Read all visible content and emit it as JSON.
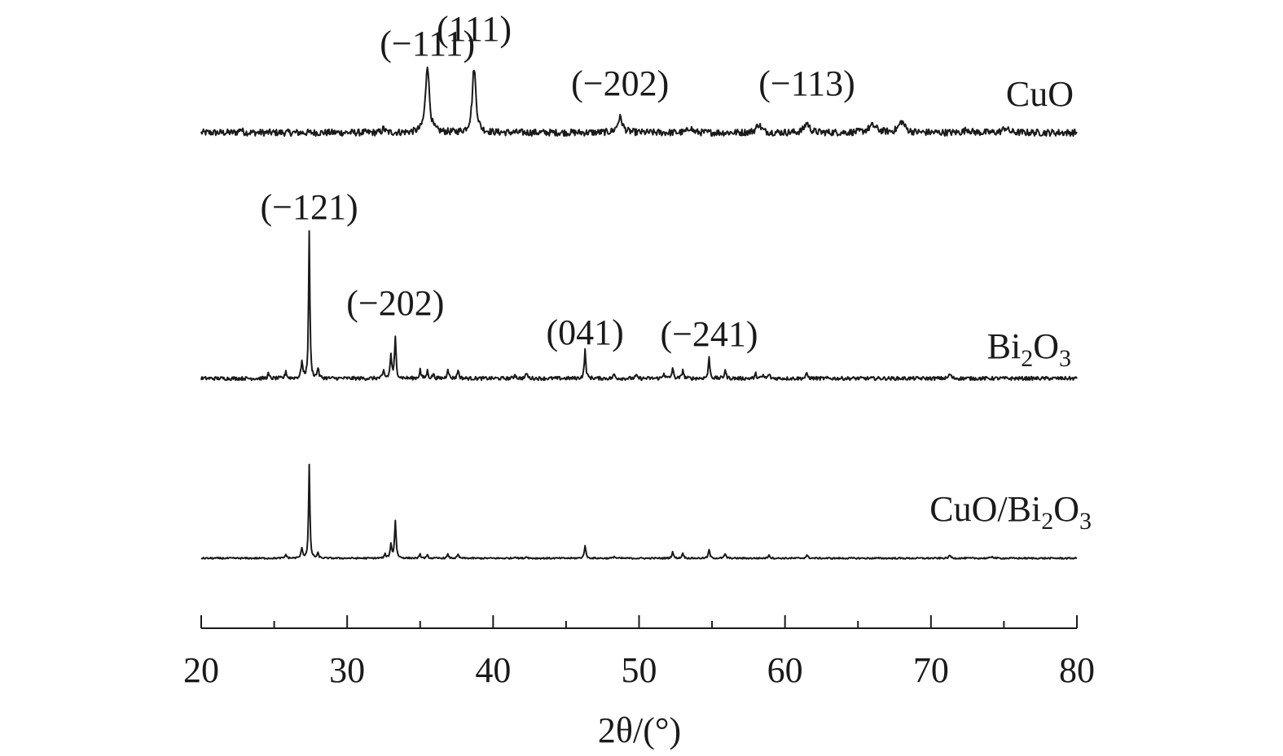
{
  "chart_data": {
    "type": "line",
    "title": "",
    "xlabel": "2θ/(°)",
    "ylabel": "",
    "xlim": [
      20,
      80
    ],
    "x_ticks": [
      20,
      30,
      40,
      50,
      60,
      70,
      80
    ],
    "x_tick_labels": [
      "20",
      "30",
      "40",
      "50",
      "60",
      "70",
      "80"
    ],
    "x_minor_step": 5,
    "y_axis_shown": false,
    "grid": false,
    "legend": "none",
    "line_color": "#1a1a1a",
    "series": [
      {
        "name": "CuO",
        "label_parts": [
          {
            "t": "CuO",
            "sub": false
          }
        ],
        "peaks": [
          {
            "x": 22.7,
            "h": 0.06,
            "w": 0.1
          },
          {
            "x": 32.5,
            "h": 0.06,
            "w": 0.1
          },
          {
            "x": 35.5,
            "h": 1.0,
            "w": 0.15
          },
          {
            "x": 38.7,
            "h": 0.95,
            "w": 0.15
          },
          {
            "x": 48.7,
            "h": 0.22,
            "w": 0.2
          },
          {
            "x": 53.5,
            "h": 0.08,
            "w": 0.15
          },
          {
            "x": 58.2,
            "h": 0.12,
            "w": 0.2
          },
          {
            "x": 61.5,
            "h": 0.14,
            "w": 0.2
          },
          {
            "x": 66.0,
            "h": 0.1,
            "w": 0.35
          },
          {
            "x": 68.0,
            "h": 0.16,
            "w": 0.25
          },
          {
            "x": 72.5,
            "h": 0.05,
            "w": 0.2
          },
          {
            "x": 75.1,
            "h": 0.07,
            "w": 0.2
          }
        ],
        "noise": 0.05,
        "annotations": [
          {
            "text": "(−111)",
            "x": 35.5
          },
          {
            "text": "(111)",
            "x": 38.7
          },
          {
            "text": "(−202)",
            "x": 48.7
          },
          {
            "text": "(−113)",
            "x": 61.5
          }
        ]
      },
      {
        "name": "Bi2O3",
        "label_parts": [
          {
            "t": "Bi",
            "sub": false
          },
          {
            "t": "2",
            "sub": true
          },
          {
            "t": "O",
            "sub": false
          },
          {
            "t": "3",
            "sub": true
          }
        ],
        "peaks": [
          {
            "x": 24.6,
            "h": 0.03,
            "w": 0.06
          },
          {
            "x": 25.8,
            "h": 0.05,
            "w": 0.06
          },
          {
            "x": 26.9,
            "h": 0.12,
            "w": 0.06
          },
          {
            "x": 27.4,
            "h": 1.0,
            "w": 0.05
          },
          {
            "x": 28.0,
            "h": 0.07,
            "w": 0.06
          },
          {
            "x": 32.5,
            "h": 0.05,
            "w": 0.06
          },
          {
            "x": 33.0,
            "h": 0.16,
            "w": 0.06
          },
          {
            "x": 33.3,
            "h": 0.27,
            "w": 0.06
          },
          {
            "x": 35.0,
            "h": 0.06,
            "w": 0.06
          },
          {
            "x": 35.5,
            "h": 0.05,
            "w": 0.06
          },
          {
            "x": 35.9,
            "h": 0.03,
            "w": 0.06
          },
          {
            "x": 36.9,
            "h": 0.07,
            "w": 0.06
          },
          {
            "x": 37.6,
            "h": 0.06,
            "w": 0.06
          },
          {
            "x": 41.5,
            "h": 0.03,
            "w": 0.06
          },
          {
            "x": 42.3,
            "h": 0.04,
            "w": 0.06
          },
          {
            "x": 46.3,
            "h": 0.19,
            "w": 0.06
          },
          {
            "x": 48.3,
            "h": 0.03,
            "w": 0.06
          },
          {
            "x": 49.8,
            "h": 0.02,
            "w": 0.06
          },
          {
            "x": 51.7,
            "h": 0.04,
            "w": 0.06
          },
          {
            "x": 52.3,
            "h": 0.07,
            "w": 0.06
          },
          {
            "x": 53.0,
            "h": 0.06,
            "w": 0.06
          },
          {
            "x": 54.8,
            "h": 0.14,
            "w": 0.06
          },
          {
            "x": 55.9,
            "h": 0.06,
            "w": 0.06
          },
          {
            "x": 58.0,
            "h": 0.03,
            "w": 0.06
          },
          {
            "x": 58.5,
            "h": 0.02,
            "w": 0.06
          },
          {
            "x": 58.9,
            "h": 0.03,
            "w": 0.06
          },
          {
            "x": 61.5,
            "h": 0.03,
            "w": 0.08
          },
          {
            "x": 71.3,
            "h": 0.03,
            "w": 0.08
          }
        ],
        "noise": 0.012,
        "annotations": [
          {
            "text": "(−121)",
            "x": 27.4
          },
          {
            "text": "(−202)",
            "x": 33.3
          },
          {
            "text": "(041)",
            "x": 46.3
          },
          {
            "text": "(−241)",
            "x": 54.8
          }
        ]
      },
      {
        "name": "CuO/Bi2O3",
        "label_parts": [
          {
            "t": "CuO/Bi",
            "sub": false
          },
          {
            "t": "2",
            "sub": true
          },
          {
            "t": "O",
            "sub": false
          },
          {
            "t": "3",
            "sub": true
          }
        ],
        "peaks": [
          {
            "x": 25.8,
            "h": 0.04,
            "w": 0.06
          },
          {
            "x": 26.9,
            "h": 0.11,
            "w": 0.06
          },
          {
            "x": 27.4,
            "h": 1.0,
            "w": 0.05
          },
          {
            "x": 28.0,
            "h": 0.05,
            "w": 0.06
          },
          {
            "x": 32.6,
            "h": 0.04,
            "w": 0.06
          },
          {
            "x": 33.0,
            "h": 0.15,
            "w": 0.06
          },
          {
            "x": 33.3,
            "h": 0.4,
            "w": 0.06
          },
          {
            "x": 35.0,
            "h": 0.04,
            "w": 0.06
          },
          {
            "x": 35.5,
            "h": 0.03,
            "w": 0.06
          },
          {
            "x": 36.9,
            "h": 0.04,
            "w": 0.06
          },
          {
            "x": 37.6,
            "h": 0.04,
            "w": 0.06
          },
          {
            "x": 41.5,
            "h": 0.02,
            "w": 0.06
          },
          {
            "x": 42.3,
            "h": 0.02,
            "w": 0.06
          },
          {
            "x": 46.3,
            "h": 0.14,
            "w": 0.06
          },
          {
            "x": 48.3,
            "h": 0.02,
            "w": 0.06
          },
          {
            "x": 52.3,
            "h": 0.07,
            "w": 0.06
          },
          {
            "x": 53.0,
            "h": 0.06,
            "w": 0.06
          },
          {
            "x": 54.8,
            "h": 0.09,
            "w": 0.06
          },
          {
            "x": 55.9,
            "h": 0.05,
            "w": 0.06
          },
          {
            "x": 58.9,
            "h": 0.04,
            "w": 0.06
          },
          {
            "x": 61.5,
            "h": 0.03,
            "w": 0.08
          },
          {
            "x": 71.3,
            "h": 0.03,
            "w": 0.08
          },
          {
            "x": 74.2,
            "h": 0.02,
            "w": 0.08
          }
        ],
        "noise": 0.008,
        "annotations": []
      }
    ]
  }
}
